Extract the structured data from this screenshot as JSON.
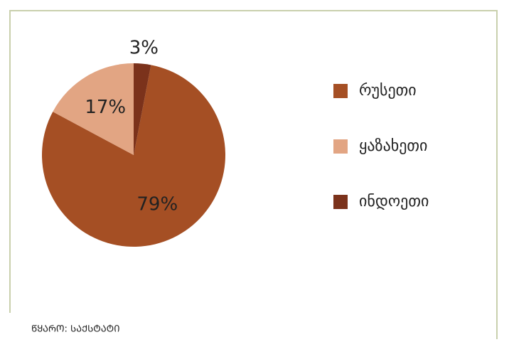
{
  "chart_data": {
    "type": "pie",
    "categories": [
      "რუსეთი",
      "ყაზახეთი",
      "ინდოეთი"
    ],
    "values": [
      79,
      17,
      3
    ],
    "value_labels": [
      "79%",
      "17%",
      "3%"
    ],
    "colors": [
      "#a54f24",
      "#e2a583",
      "#7b321b"
    ],
    "source": "ᲬᲧᲐᲠᲝ: ᲡᲐᲥᲡᲢᲐᲢᲘ",
    "legend": "right"
  }
}
